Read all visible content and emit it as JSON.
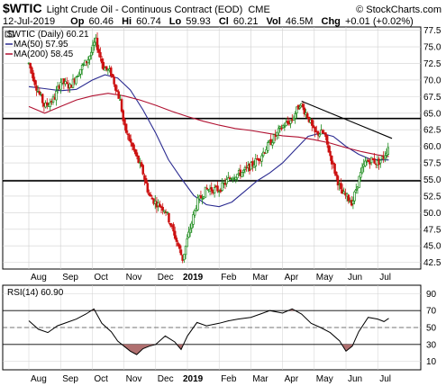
{
  "header": {
    "symbol": "$WTIC",
    "name": "Light Crude Oil - Continuous Contract (EOD)",
    "exchange": "CME",
    "watermark": "© StockCharts.com",
    "date": "12-Jul-2019",
    "open_label": "Op",
    "open": "60.46",
    "high_label": "Hi",
    "high": "60.74",
    "low_label": "Lo",
    "low": "59.93",
    "close_label": "Cl",
    "close": "60.21",
    "vol_label": "Vol",
    "vol": "46.5M",
    "chg_label": "Chg",
    "chg": "+0.01 (+0.02%)"
  },
  "legend": {
    "price": "$WTIC (Daily) 60.21",
    "ma50": "MA(50) 57.95",
    "ma200": "MA(200) 58.45",
    "rsi": "RSI(14) 60.90"
  },
  "colors": {
    "up": "#1a8a1a",
    "down": "#cc1111",
    "ma50": "#2a2a90",
    "ma200": "#b01030",
    "rsi_line": "#000000",
    "rsi_fill_low": "#b07070",
    "rsi_fill_high": "#b07070",
    "grid": "#d0d0d0",
    "level_lines": "#000000"
  },
  "chart_data": [
    {
      "type": "candlestick",
      "title": "$WTIC Light Crude Oil - Continuous Contract (EOD)",
      "x_months": [
        "Aug",
        "Sep",
        "Oct",
        "Nov",
        "Dec",
        "2019",
        "Feb",
        "Mar",
        "Apr",
        "May",
        "Jun",
        "Jul"
      ],
      "ylim": [
        41.5,
        78
      ],
      "yticks": [
        42.5,
        45.0,
        47.5,
        50.0,
        52.5,
        55.0,
        57.5,
        60.0,
        62.5,
        65.0,
        67.5,
        70.0,
        72.5,
        75.0,
        77.5
      ],
      "horizontal_levels": [
        64.2,
        54.8
      ],
      "trendline": {
        "from": {
          "month": "Apr",
          "value": 66.8
        },
        "to": {
          "month": "Jul",
          "value": 61.2
        }
      },
      "close_path": [
        {
          "t": 0.0,
          "v": 72.5
        },
        {
          "t": 0.25,
          "v": 68.8
        },
        {
          "t": 0.5,
          "v": 66.0
        },
        {
          "t": 0.8,
          "v": 67.2
        },
        {
          "t": 1.0,
          "v": 69.8
        },
        {
          "t": 1.3,
          "v": 69.0
        },
        {
          "t": 1.6,
          "v": 71.5
        },
        {
          "t": 1.85,
          "v": 73.0
        },
        {
          "t": 2.0,
          "v": 74.5
        },
        {
          "t": 2.1,
          "v": 76.0
        },
        {
          "t": 2.35,
          "v": 72.0
        },
        {
          "t": 2.6,
          "v": 71.0
        },
        {
          "t": 2.9,
          "v": 66.5
        },
        {
          "t": 3.0,
          "v": 63.0
        },
        {
          "t": 3.3,
          "v": 59.5
        },
        {
          "t": 3.6,
          "v": 56.0
        },
        {
          "t": 3.8,
          "v": 52.5
        },
        {
          "t": 4.0,
          "v": 51.5
        },
        {
          "t": 4.3,
          "v": 50.5
        },
        {
          "t": 4.6,
          "v": 46.5
        },
        {
          "t": 4.85,
          "v": 43.0
        },
        {
          "t": 5.0,
          "v": 46.0
        },
        {
          "t": 5.3,
          "v": 51.5
        },
        {
          "t": 5.6,
          "v": 53.5
        },
        {
          "t": 6.0,
          "v": 53.5
        },
        {
          "t": 6.4,
          "v": 55.5
        },
        {
          "t": 6.7,
          "v": 56.0
        },
        {
          "t": 7.0,
          "v": 57.0
        },
        {
          "t": 7.3,
          "v": 58.5
        },
        {
          "t": 7.6,
          "v": 60.5
        },
        {
          "t": 8.0,
          "v": 63.0
        },
        {
          "t": 8.3,
          "v": 64.0
        },
        {
          "t": 8.55,
          "v": 66.5
        },
        {
          "t": 8.8,
          "v": 64.5
        },
        {
          "t": 9.0,
          "v": 62.0
        },
        {
          "t": 9.3,
          "v": 62.0
        },
        {
          "t": 9.6,
          "v": 57.0
        },
        {
          "t": 9.85,
          "v": 53.0
        },
        {
          "t": 10.0,
          "v": 52.5
        },
        {
          "t": 10.2,
          "v": 51.5
        },
        {
          "t": 10.4,
          "v": 55.0
        },
        {
          "t": 10.6,
          "v": 57.5
        },
        {
          "t": 10.8,
          "v": 58.0
        },
        {
          "t": 11.0,
          "v": 57.5
        },
        {
          "t": 11.2,
          "v": 58.5
        },
        {
          "t": 11.35,
          "v": 60.2
        }
      ],
      "series": [
        {
          "name": "MA(50) 57.95",
          "points": [
            {
              "t": 0.0,
              "v": 69.0
            },
            {
              "t": 0.5,
              "v": 68.7
            },
            {
              "t": 1.0,
              "v": 68.4
            },
            {
              "t": 1.5,
              "v": 68.6
            },
            {
              "t": 2.0,
              "v": 70.0
            },
            {
              "t": 2.4,
              "v": 70.8
            },
            {
              "t": 2.8,
              "v": 70.3
            },
            {
              "t": 3.2,
              "v": 68.5
            },
            {
              "t": 3.6,
              "v": 65.5
            },
            {
              "t": 4.0,
              "v": 62.0
            },
            {
              "t": 4.4,
              "v": 58.0
            },
            {
              "t": 4.8,
              "v": 55.2
            },
            {
              "t": 5.2,
              "v": 52.6
            },
            {
              "t": 5.6,
              "v": 51.2
            },
            {
              "t": 6.0,
              "v": 50.9
            },
            {
              "t": 6.4,
              "v": 51.6
            },
            {
              "t": 6.8,
              "v": 53.2
            },
            {
              "t": 7.2,
              "v": 54.8
            },
            {
              "t": 7.6,
              "v": 56.0
            },
            {
              "t": 8.0,
              "v": 57.5
            },
            {
              "t": 8.4,
              "v": 59.5
            },
            {
              "t": 8.8,
              "v": 61.5
            },
            {
              "t": 9.2,
              "v": 62.0
            },
            {
              "t": 9.6,
              "v": 61.5
            },
            {
              "t": 10.0,
              "v": 60.0
            },
            {
              "t": 10.4,
              "v": 58.8
            },
            {
              "t": 10.8,
              "v": 58.0
            },
            {
              "t": 11.35,
              "v": 57.95
            }
          ]
        },
        {
          "name": "MA(200) 58.45",
          "points": [
            {
              "t": 0.0,
              "v": 66.0
            },
            {
              "t": 0.5,
              "v": 65.0
            },
            {
              "t": 1.0,
              "v": 66.0
            },
            {
              "t": 1.5,
              "v": 67.0
            },
            {
              "t": 2.0,
              "v": 67.6
            },
            {
              "t": 2.5,
              "v": 68.0
            },
            {
              "t": 3.0,
              "v": 67.6
            },
            {
              "t": 3.5,
              "v": 67.0
            },
            {
              "t": 4.0,
              "v": 66.2
            },
            {
              "t": 4.5,
              "v": 65.3
            },
            {
              "t": 5.0,
              "v": 64.5
            },
            {
              "t": 5.5,
              "v": 63.8
            },
            {
              "t": 6.0,
              "v": 63.2
            },
            {
              "t": 6.5,
              "v": 62.7
            },
            {
              "t": 7.0,
              "v": 62.4
            },
            {
              "t": 7.5,
              "v": 62.0
            },
            {
              "t": 8.0,
              "v": 61.6
            },
            {
              "t": 8.5,
              "v": 61.4
            },
            {
              "t": 9.0,
              "v": 61.0
            },
            {
              "t": 9.5,
              "v": 60.5
            },
            {
              "t": 10.0,
              "v": 59.8
            },
            {
              "t": 10.5,
              "v": 59.2
            },
            {
              "t": 11.0,
              "v": 58.7
            },
            {
              "t": 11.35,
              "v": 58.45
            }
          ]
        }
      ]
    },
    {
      "type": "line",
      "title": "RSI(14) 60.90",
      "ylim": [
        0,
        100
      ],
      "yticks": [
        10,
        30,
        50,
        70,
        90
      ],
      "reference_lines": [
        70,
        50,
        30
      ],
      "series": [
        {
          "name": "RSI(14) 60.90",
          "points": [
            {
              "t": 0.0,
              "v": 58
            },
            {
              "t": 0.3,
              "v": 48
            },
            {
              "t": 0.6,
              "v": 44
            },
            {
              "t": 0.9,
              "v": 52
            },
            {
              "t": 1.2,
              "v": 56
            },
            {
              "t": 1.5,
              "v": 60
            },
            {
              "t": 1.8,
              "v": 66
            },
            {
              "t": 2.05,
              "v": 72
            },
            {
              "t": 2.3,
              "v": 55
            },
            {
              "t": 2.6,
              "v": 45
            },
            {
              "t": 2.8,
              "v": 34
            },
            {
              "t": 3.0,
              "v": 28
            },
            {
              "t": 3.2,
              "v": 22
            },
            {
              "t": 3.4,
              "v": 18
            },
            {
              "t": 3.6,
              "v": 25
            },
            {
              "t": 3.8,
              "v": 28
            },
            {
              "t": 4.0,
              "v": 30
            },
            {
              "t": 4.3,
              "v": 40
            },
            {
              "t": 4.6,
              "v": 33
            },
            {
              "t": 4.8,
              "v": 24
            },
            {
              "t": 5.0,
              "v": 40
            },
            {
              "t": 5.3,
              "v": 56
            },
            {
              "t": 5.6,
              "v": 52
            },
            {
              "t": 6.0,
              "v": 55
            },
            {
              "t": 6.3,
              "v": 58
            },
            {
              "t": 6.6,
              "v": 60
            },
            {
              "t": 7.0,
              "v": 62
            },
            {
              "t": 7.3,
              "v": 66
            },
            {
              "t": 7.6,
              "v": 70
            },
            {
              "t": 8.0,
              "v": 67
            },
            {
              "t": 8.3,
              "v": 72
            },
            {
              "t": 8.6,
              "v": 66
            },
            {
              "t": 8.9,
              "v": 55
            },
            {
              "t": 9.2,
              "v": 50
            },
            {
              "t": 9.5,
              "v": 44
            },
            {
              "t": 9.8,
              "v": 34
            },
            {
              "t": 10.0,
              "v": 22
            },
            {
              "t": 10.2,
              "v": 28
            },
            {
              "t": 10.4,
              "v": 45
            },
            {
              "t": 10.7,
              "v": 62
            },
            {
              "t": 11.0,
              "v": 60
            },
            {
              "t": 11.2,
              "v": 57
            },
            {
              "t": 11.35,
              "v": 60.9
            }
          ]
        }
      ]
    }
  ]
}
